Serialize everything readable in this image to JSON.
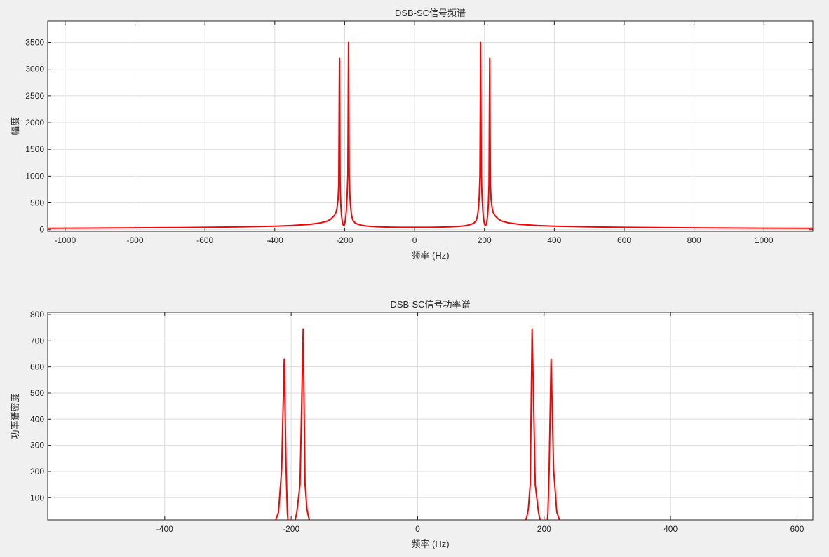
{
  "colors": {
    "background": "#f0f0f0",
    "axes_bg": "#ffffff",
    "line": "#ff0000",
    "grid": "#dcdcdc",
    "axis": "#262626"
  },
  "chart_data": [
    {
      "type": "line",
      "title": "DSB-SC信号频谱",
      "xlabel": "频率 (Hz)",
      "ylabel": "幅度",
      "xlim": [
        -1050,
        1140
      ],
      "ylim": [
        -30,
        3900
      ],
      "grid": true,
      "xticks": [
        -1000,
        -800,
        -600,
        -400,
        -200,
        0,
        200,
        400,
        600,
        800,
        1000
      ],
      "yticks": [
        0,
        500,
        1000,
        1500,
        2000,
        2500,
        3000,
        3500
      ],
      "series": [
        {
          "x": [
            -1050,
            -1000,
            -900,
            -800,
            -700,
            -600,
            -500,
            -400,
            -350,
            -300,
            -270,
            -250,
            -240,
            -230,
            -225,
            -222,
            -219,
            -217,
            -215,
            -213,
            -211,
            -209,
            -207,
            -205,
            -203,
            -201,
            -199,
            -197,
            -195,
            -193,
            -191,
            -189,
            -187,
            -185,
            -183,
            -181,
            -179,
            -177,
            -175,
            -170,
            -165,
            -160,
            -150,
            -140,
            -130,
            -120,
            -100,
            -80,
            -60,
            -40,
            -20,
            0,
            20,
            40,
            60,
            80,
            100,
            120,
            130,
            140,
            150,
            160,
            165,
            170,
            175,
            177,
            179,
            181,
            183,
            185,
            187,
            189,
            191,
            193,
            195,
            197,
            199,
            201,
            203,
            205,
            207,
            209,
            211,
            213,
            215,
            217,
            219,
            222,
            225,
            230,
            240,
            250,
            270,
            300,
            350,
            400,
            500,
            600,
            700,
            800,
            900,
            1000,
            1140
          ],
          "y": [
            25,
            27,
            30,
            34,
            38,
            44,
            52,
            65,
            78,
            100,
            125,
            160,
            195,
            260,
            320,
            400,
            560,
            850,
            3200,
            850,
            450,
            260,
            160,
            100,
            75,
            90,
            140,
            230,
            380,
            640,
            1000,
            3500,
            1000,
            620,
            420,
            300,
            230,
            185,
            160,
            125,
            108,
            97,
            80,
            70,
            63,
            58,
            52,
            48,
            46,
            44,
            43,
            43,
            43,
            44,
            46,
            48,
            52,
            58,
            63,
            70,
            80,
            97,
            108,
            125,
            160,
            185,
            230,
            300,
            420,
            620,
            1000,
            3500,
            1000,
            640,
            380,
            230,
            140,
            90,
            75,
            100,
            160,
            260,
            450,
            850,
            3200,
            850,
            560,
            400,
            320,
            260,
            195,
            160,
            125,
            100,
            78,
            65,
            52,
            44,
            38,
            34,
            30,
            27,
            25
          ]
        }
      ]
    },
    {
      "type": "line",
      "title": "DSB-SC信号功率谱",
      "xlabel": "频率 (Hz)",
      "ylabel": "功率谱密度",
      "xlim": [
        -585,
        625
      ],
      "ylim": [
        15,
        808
      ],
      "grid": true,
      "xticks": [
        -400,
        -200,
        0,
        200,
        400,
        600
      ],
      "yticks": [
        100,
        200,
        300,
        400,
        500,
        600,
        700,
        800
      ],
      "series": [
        {
          "x": [
            -225,
            -220,
            -215,
            -211,
            -208,
            -206,
            -205,
            -194,
            -191,
            -186,
            -181,
            -178,
            -175,
            -172,
            -170,
            170,
            172,
            175,
            178,
            181,
            186,
            191,
            194,
            205,
            206,
            208,
            211,
            215,
            220,
            225
          ],
          "y": [
            10,
            45,
            210,
            630,
            210,
            40,
            10,
            10,
            45,
            150,
            745,
            150,
            55,
            20,
            10,
            10,
            20,
            55,
            150,
            745,
            150,
            45,
            10,
            10,
            40,
            210,
            630,
            210,
            45,
            10
          ]
        }
      ]
    }
  ]
}
